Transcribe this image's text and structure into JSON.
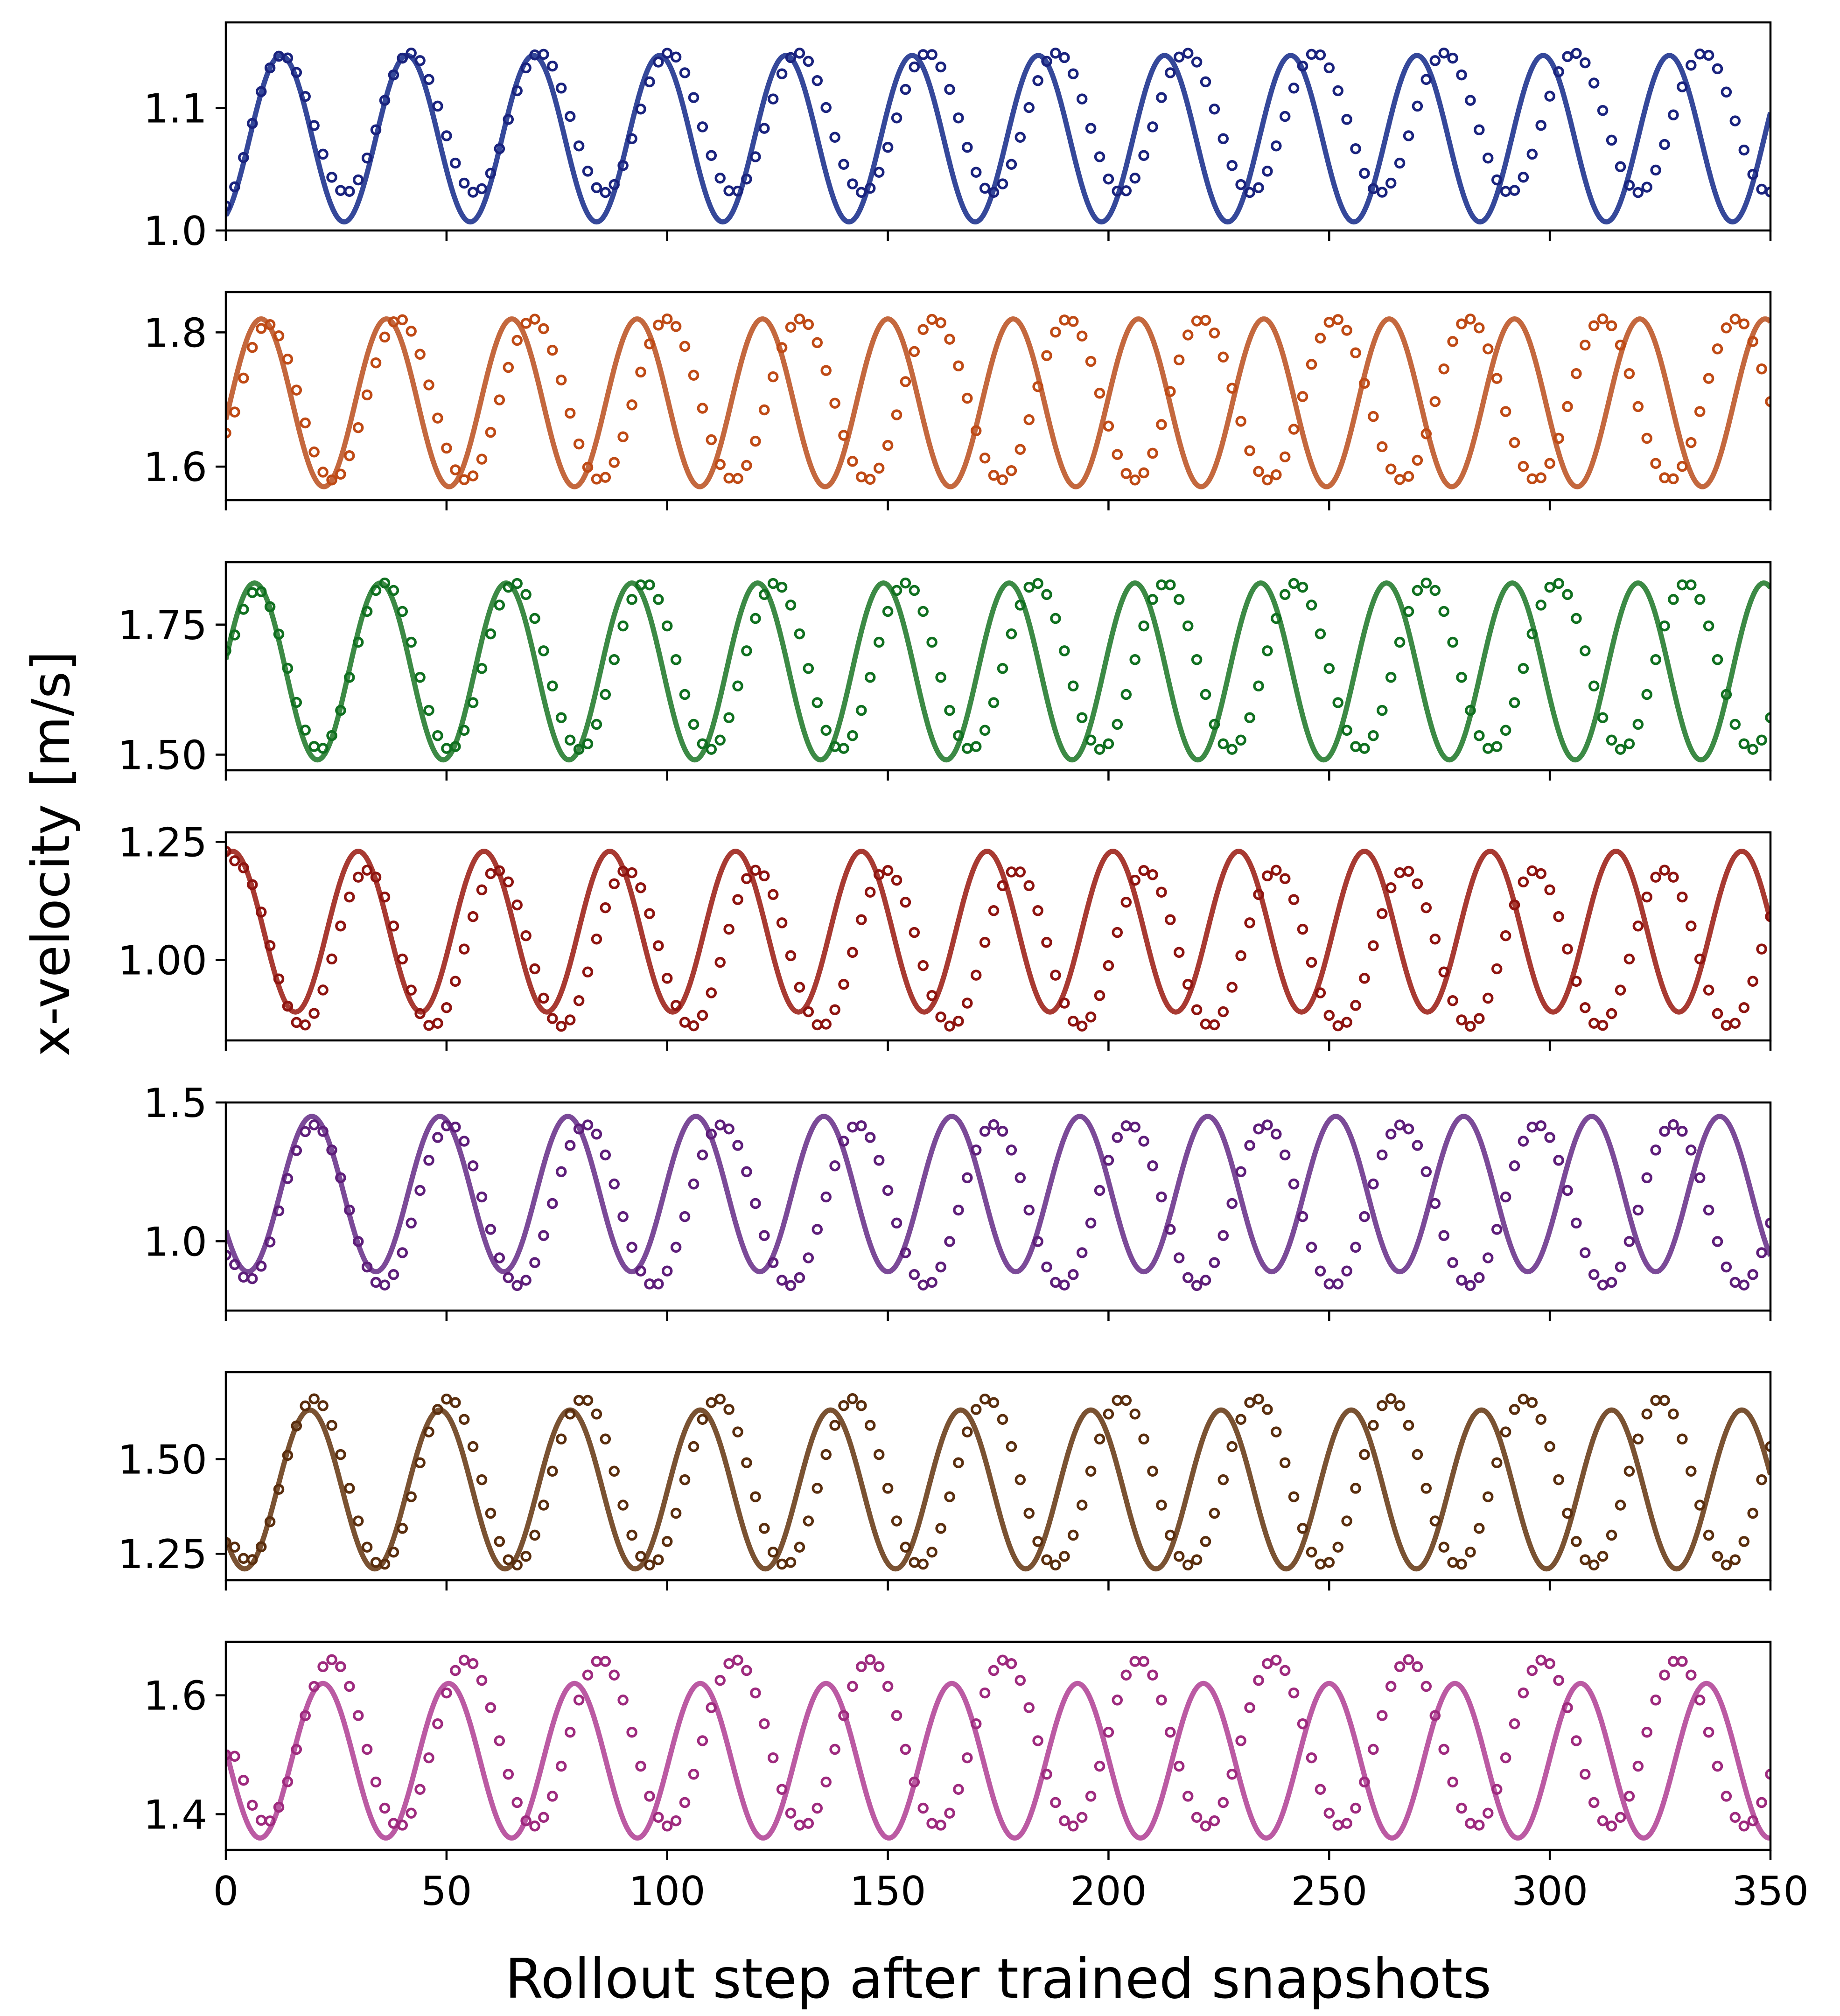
{
  "chart_data": {
    "type": "line",
    "layout": "7 stacked subplots sharing x-axis",
    "xlabel": "Rollout step after trained snapshots",
    "ylabel": "x-velocity [m/s]",
    "xlim": [
      0,
      350
    ],
    "xticks": [
      0,
      50,
      100,
      150,
      200,
      250,
      300,
      350
    ],
    "xtick_labels": [
      "0",
      "50",
      "100",
      "150",
      "200",
      "250",
      "300",
      "350"
    ],
    "legend": "none",
    "series_style_note": "solid line = reference signal; open circles = model rollout",
    "panels": [
      {
        "name": "panel-1",
        "ylim": [
          1.0,
          1.17
        ],
        "yticks": [
          1.0,
          1.1
        ],
        "ytick_labels": [
          "1.0",
          "1.1"
        ],
        "line_color": "#35489a",
        "marker_color": "#1a237e",
        "line": {
          "mean": 1.075,
          "amp": 0.068,
          "period": 28.6,
          "peak_at": 12.5
        },
        "markers": {
          "mean": 1.088,
          "amp": 0.057,
          "period": 29.3,
          "peak_at": 12.5,
          "start_value": 1.02
        }
      },
      {
        "name": "panel-2",
        "ylim": [
          1.55,
          1.86
        ],
        "yticks": [
          1.6,
          1.8
        ],
        "ytick_labels": [
          "1.6",
          "1.8"
        ],
        "line_color": "#c4683e",
        "marker_color": "#bf4a15",
        "line": {
          "mean": 1.695,
          "amp": 0.125,
          "period": 28.4,
          "peak_at": 8
        },
        "markers": {
          "mean": 1.7,
          "amp": 0.12,
          "period": 30.3,
          "peak_at": 9,
          "start_value": 1.65
        }
      },
      {
        "name": "panel-3",
        "ylim": [
          1.47,
          1.87
        ],
        "yticks": [
          1.5,
          1.75
        ],
        "ytick_labels": [
          "1.50",
          "1.75"
        ],
        "line_color": "#3c8a45",
        "marker_color": "#107020",
        "line": {
          "mean": 1.66,
          "amp": 0.17,
          "period": 28.5,
          "peak_at": 6.5
        },
        "markers": {
          "mean": 1.67,
          "amp": 0.16,
          "period": 29.5,
          "peak_at": 6.5,
          "start_value": 1.7
        }
      },
      {
        "name": "panel-4",
        "ylim": [
          0.83,
          1.27
        ],
        "yticks": [
          1.0,
          1.25
        ],
        "ytick_labels": [
          "1.00",
          "1.25"
        ],
        "line_color": "#a83a32",
        "marker_color": "#8e1410",
        "line": {
          "mean": 1.06,
          "amp": 0.17,
          "period": 28.5,
          "peak_at": 30
        },
        "markers": {
          "mean": 1.025,
          "amp": 0.165,
          "period": 29.4,
          "peak_at": 32,
          "start_value": 1.23
        }
      },
      {
        "name": "panel-5",
        "ylim": [
          0.75,
          1.5
        ],
        "yticks": [
          1.0,
          1.5
        ],
        "ytick_labels": [
          "1.0",
          "1.5"
        ],
        "line_color": "#7b4a98",
        "marker_color": "#5e1e7a",
        "line": {
          "mean": 1.17,
          "amp": 0.28,
          "period": 29.0,
          "peak_at": 19.5
        },
        "markers": {
          "mean": 1.13,
          "amp": 0.29,
          "period": 30.8,
          "peak_at": 20,
          "start_value": 0.95
        }
      },
      {
        "name": "panel-6",
        "ylim": [
          1.18,
          1.73
        ],
        "yticks": [
          1.25,
          1.5
        ],
        "ytick_labels": [
          "1.25",
          "1.50"
        ],
        "line_color": "#7a5232",
        "marker_color": "#5a2e0e",
        "line": {
          "mean": 1.42,
          "amp": 0.21,
          "period": 29.5,
          "peak_at": 19
        },
        "markers": {
          "mean": 1.44,
          "amp": 0.22,
          "period": 30.5,
          "peak_at": 20,
          "start_value": 1.28
        }
      },
      {
        "name": "panel-7",
        "ylim": [
          1.34,
          1.69
        ],
        "yticks": [
          1.4,
          1.6
        ],
        "ytick_labels": [
          "1.4",
          "1.6"
        ],
        "line_color": "#bb5aa3",
        "marker_color": "#9e2a7e",
        "line": {
          "mean": 1.49,
          "amp": 0.13,
          "period": 28.5,
          "peak_at": 22
        },
        "markers": {
          "mean": 1.52,
          "amp": 0.14,
          "period": 30.5,
          "peak_at": 24,
          "start_value": 1.5
        }
      }
    ]
  }
}
